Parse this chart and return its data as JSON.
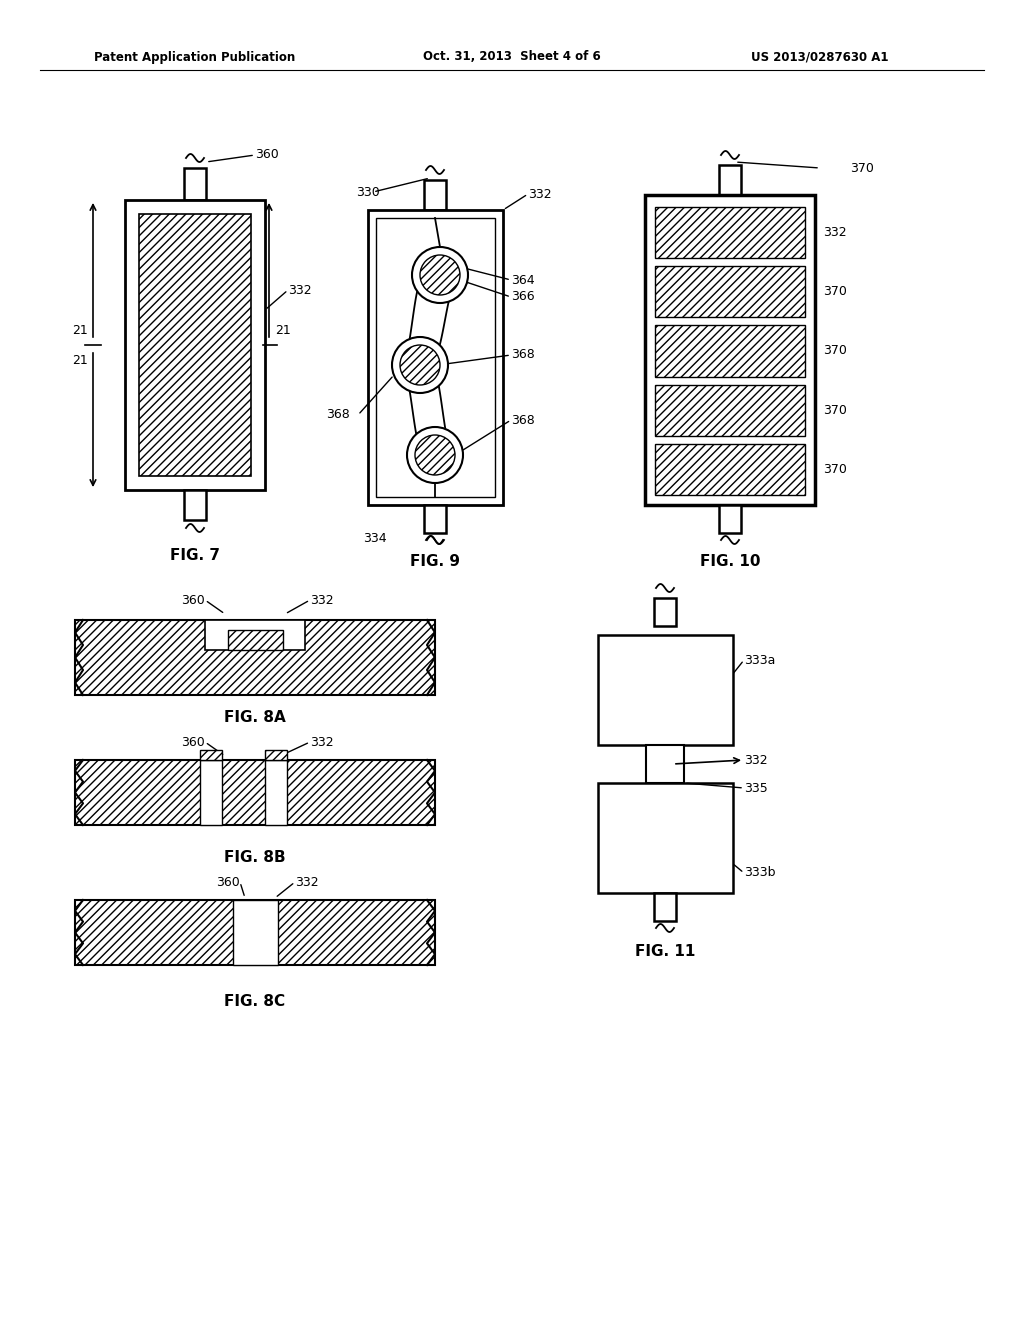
{
  "header_left": "Patent Application Publication",
  "header_middle": "Oct. 31, 2013  Sheet 4 of 6",
  "header_right": "US 2013/0287630 A1",
  "bg_color": "#ffffff"
}
